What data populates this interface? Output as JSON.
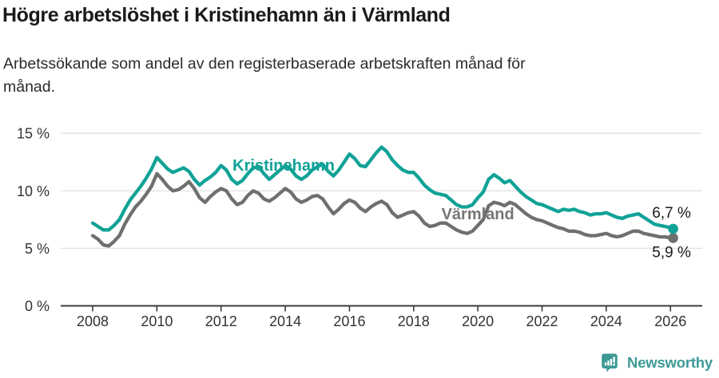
{
  "header": {
    "title": "Högre arbetslöshet i Kristinehamn än i Värmland",
    "subtitle_lines": [
      "Arbetssökande som andel av den registerbaserade arbetskraften månad för",
      "månad."
    ]
  },
  "footer": {
    "brand": "Newsworthy",
    "brand_color": "#3d9a96"
  },
  "colors": {
    "kristinehamn": "#10a297",
    "varmland": "#6f6f6f",
    "grid": "#e3e3e3",
    "axis": "#3b3b3b",
    "tick_label": "#333333",
    "end_label": "#1a1a1a"
  },
  "chart_data": {
    "type": "line",
    "title": "Högre arbetslöshet i Kristinehamn än i Värmland",
    "subtitle": "Arbetssökande som andel av den registerbaserade arbetskraften månad för månad.",
    "xlabel": "",
    "ylabel": "",
    "grid": true,
    "ylim": [
      0,
      15.5
    ],
    "x_start_year": 2008,
    "x_step_months": 2,
    "last_step_months": 1,
    "y_ticks": [
      {
        "label": "0 %",
        "value": 0
      },
      {
        "label": "5 %",
        "value": 5
      },
      {
        "label": "10 %",
        "value": 10
      },
      {
        "label": "15 %",
        "value": 15
      }
    ],
    "x_ticks": [
      {
        "label": "2008",
        "year": 2008
      },
      {
        "label": "2010",
        "year": 2010
      },
      {
        "label": "2012",
        "year": 2012
      },
      {
        "label": "2014",
        "year": 2014
      },
      {
        "label": "2016",
        "year": 2016
      },
      {
        "label": "2018",
        "year": 2018
      },
      {
        "label": "2020",
        "year": 2020
      },
      {
        "label": "2022",
        "year": 2022
      },
      {
        "label": "2024",
        "year": 2024
      },
      {
        "label": "2026",
        "year": 2026
      }
    ],
    "series": [
      {
        "name": "Värmland",
        "color": "#6f6f6f",
        "label_color": "#767676",
        "label_anchor": {
          "year": 2020.0,
          "value": 8.0
        },
        "end_label": "5,9 %",
        "end_value": 5.9,
        "end_label_position": "below",
        "values": [
          6.1,
          5.8,
          5.3,
          5.2,
          5.6,
          6.1,
          7.1,
          7.9,
          8.6,
          9.1,
          9.7,
          10.4,
          11.5,
          11.0,
          10.4,
          10.0,
          10.1,
          10.4,
          10.8,
          10.2,
          9.4,
          9.0,
          9.5,
          9.9,
          10.2,
          10.0,
          9.3,
          8.8,
          9.0,
          9.6,
          10.0,
          9.8,
          9.3,
          9.1,
          9.4,
          9.8,
          10.2,
          9.9,
          9.3,
          9.0,
          9.2,
          9.5,
          9.6,
          9.3,
          8.6,
          8.0,
          8.4,
          8.9,
          9.2,
          9.0,
          8.5,
          8.2,
          8.6,
          8.9,
          9.1,
          8.8,
          8.1,
          7.7,
          7.9,
          8.1,
          8.2,
          7.8,
          7.2,
          6.9,
          7.0,
          7.2,
          7.2,
          6.9,
          6.6,
          6.4,
          6.3,
          6.5,
          7.0,
          7.5,
          8.7,
          9.0,
          8.9,
          8.7,
          9.0,
          8.8,
          8.4,
          8.0,
          7.7,
          7.5,
          7.4,
          7.2,
          7.0,
          6.8,
          6.7,
          6.5,
          6.5,
          6.4,
          6.2,
          6.1,
          6.1,
          6.2,
          6.3,
          6.1,
          6.0,
          6.1,
          6.3,
          6.5,
          6.5,
          6.3,
          6.2,
          6.1,
          6.0,
          6.0,
          5.9,
          5.9
        ]
      },
      {
        "name": "Kristinehamn",
        "color": "#10a297",
        "label_color": "#10a297",
        "label_anchor": {
          "year": 2013.95,
          "value": 12.25
        },
        "end_label": "6,7 %",
        "end_value": 6.7,
        "end_label_position": "above",
        "values": [
          7.2,
          6.9,
          6.6,
          6.6,
          7.0,
          7.5,
          8.4,
          9.2,
          9.8,
          10.4,
          11.1,
          11.9,
          12.9,
          12.4,
          11.9,
          11.6,
          11.8,
          12.0,
          11.7,
          11.0,
          10.5,
          10.9,
          11.2,
          11.6,
          12.2,
          11.8,
          11.0,
          10.6,
          10.9,
          11.5,
          12.0,
          12.1,
          11.5,
          11.0,
          11.4,
          11.8,
          12.2,
          11.9,
          11.3,
          11.0,
          11.3,
          11.8,
          12.1,
          12.3,
          11.7,
          11.3,
          11.8,
          12.5,
          13.2,
          12.8,
          12.2,
          12.1,
          12.7,
          13.3,
          13.8,
          13.4,
          12.7,
          12.2,
          11.8,
          11.6,
          11.6,
          11.1,
          10.5,
          10.1,
          9.8,
          9.7,
          9.6,
          9.2,
          8.8,
          8.6,
          8.6,
          8.8,
          9.4,
          9.9,
          11.0,
          11.4,
          11.1,
          10.7,
          10.9,
          10.4,
          9.9,
          9.5,
          9.2,
          8.9,
          8.8,
          8.6,
          8.4,
          8.2,
          8.4,
          8.3,
          8.4,
          8.2,
          8.1,
          7.9,
          8.0,
          8.0,
          8.1,
          7.9,
          7.7,
          7.6,
          7.8,
          7.9,
          8.0,
          7.7,
          7.4,
          7.1,
          7.0,
          6.9,
          6.8,
          6.7
        ]
      }
    ]
  }
}
